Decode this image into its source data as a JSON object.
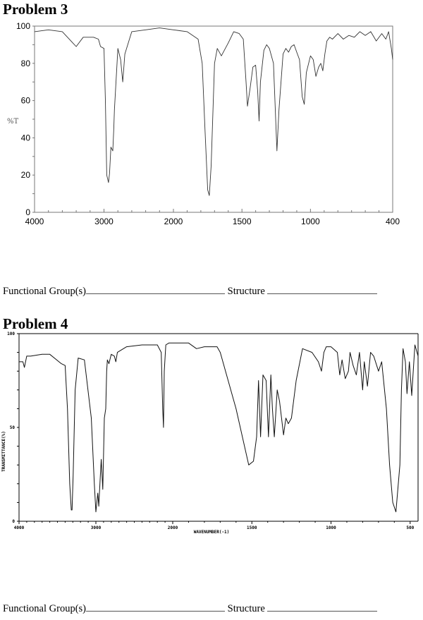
{
  "problems": [
    {
      "title": "Problem 3",
      "answer": {
        "functional_groups_label": "Functional Group(s)",
        "structure_label": "Structure"
      }
    },
    {
      "title": "Problem 4",
      "answer": {
        "functional_groups_label": "Functional Group(s)",
        "structure_label": "Structure"
      }
    }
  ],
  "chart_data": [
    {
      "type": "line",
      "title": "Problem 3",
      "xlabel": "",
      "ylabel": "%T",
      "xlim": [
        4000,
        400
      ],
      "ylim": [
        0,
        100
      ],
      "x_ticks": [
        4000,
        3000,
        2000,
        1500,
        1000,
        400
      ],
      "y_ticks": [
        0,
        20,
        40,
        60,
        80,
        100
      ],
      "grid": false,
      "x": [
        4000,
        3800,
        3600,
        3450,
        3400,
        3300,
        3150,
        3080,
        3050,
        3000,
        2980,
        2960,
        2935,
        2920,
        2900,
        2873,
        2860,
        2850,
        2800,
        2760,
        2730,
        2700,
        2600,
        2400,
        2200,
        2000,
        1900,
        1820,
        1790,
        1770,
        1750,
        1738,
        1725,
        1700,
        1680,
        1650,
        1600,
        1560,
        1520,
        1490,
        1470,
        1460,
        1440,
        1420,
        1400,
        1385,
        1375,
        1365,
        1340,
        1320,
        1300,
        1270,
        1245,
        1230,
        1200,
        1180,
        1160,
        1140,
        1120,
        1100,
        1080,
        1060,
        1045,
        1030,
        1000,
        980,
        960,
        940,
        925,
        910,
        895,
        880,
        860,
        840,
        800,
        760,
        720,
        680,
        640,
        600,
        560,
        520,
        480,
        450,
        430,
        410,
        400
      ],
      "values": [
        97,
        98,
        97,
        91,
        89,
        94,
        94,
        93,
        89,
        88,
        60,
        20,
        16,
        21,
        35,
        33,
        44,
        55,
        88,
        82,
        70,
        85,
        97,
        98,
        99,
        98,
        97,
        93,
        80,
        45,
        12,
        9,
        25,
        80,
        88,
        84,
        91,
        97,
        96,
        93,
        70,
        57,
        67,
        78,
        79,
        65,
        49,
        70,
        87,
        90,
        88,
        80,
        33,
        55,
        85,
        88,
        86,
        89,
        90,
        86,
        82,
        62,
        58,
        75,
        84,
        82,
        73,
        78,
        80,
        76,
        85,
        92,
        94,
        93,
        96,
        93,
        95,
        94,
        97,
        95,
        97,
        92,
        96,
        93,
        97,
        88,
        82
      ]
    },
    {
      "type": "line",
      "title": "Problem 4",
      "xlabel": "WAVENUMBER(-1)",
      "ylabel": "TRANSMITTANCE(%)",
      "xlim": [
        4000,
        450
      ],
      "ylim": [
        0,
        100
      ],
      "x_ticks": [
        4000,
        3000,
        2000,
        1500,
        1000,
        500
      ],
      "y_ticks": [
        0,
        50,
        100
      ],
      "grid": false,
      "x": [
        4000,
        3950,
        3930,
        3900,
        3850,
        3700,
        3600,
        3450,
        3400,
        3370,
        3340,
        3320,
        3310,
        3295,
        3270,
        3230,
        3150,
        3060,
        3020,
        3000,
        2975,
        2962,
        2945,
        2930,
        2910,
        2890,
        2872,
        2860,
        2850,
        2830,
        2800,
        2760,
        2740,
        2720,
        2600,
        2400,
        2200,
        2150,
        2130,
        2120,
        2110,
        2090,
        2050,
        1900,
        1850,
        1800,
        1720,
        1700,
        1600,
        1520,
        1490,
        1470,
        1458,
        1445,
        1430,
        1410,
        1395,
        1380,
        1370,
        1358,
        1340,
        1325,
        1300,
        1285,
        1270,
        1250,
        1220,
        1180,
        1120,
        1080,
        1060,
        1045,
        1030,
        1000,
        960,
        945,
        930,
        910,
        890,
        880,
        860,
        840,
        820,
        800,
        790,
        770,
        750,
        730,
        700,
        680,
        650,
        630,
        610,
        590,
        565,
        555,
        545,
        530,
        520,
        505,
        490,
        470,
        450
      ],
      "values": [
        85,
        85,
        82,
        88,
        88,
        89,
        89,
        84,
        83,
        60,
        20,
        6,
        6,
        25,
        70,
        87,
        86,
        55,
        20,
        5,
        15,
        8,
        22,
        33,
        17,
        55,
        60,
        80,
        86,
        84,
        89,
        88,
        85,
        90,
        93,
        94,
        94,
        90,
        60,
        50,
        80,
        94,
        95,
        95,
        92,
        93,
        93,
        90,
        60,
        30,
        32,
        45,
        75,
        45,
        78,
        75,
        45,
        78,
        60,
        45,
        70,
        64,
        46,
        55,
        52,
        55,
        75,
        92,
        90,
        85,
        80,
        90,
        93,
        93,
        90,
        78,
        86,
        76,
        80,
        90,
        83,
        78,
        90,
        70,
        85,
        72,
        90,
        88,
        80,
        85,
        60,
        30,
        10,
        5,
        30,
        70,
        92,
        85,
        68,
        85,
        67,
        94,
        88
      ]
    }
  ]
}
